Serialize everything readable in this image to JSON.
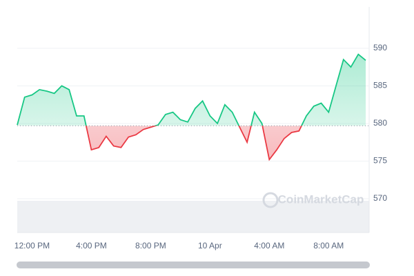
{
  "chart_data": {
    "type": "line",
    "categories": [
      null,
      null,
      "12:00 PM",
      null,
      null,
      null,
      null,
      null,
      null,
      null,
      "4:00 PM",
      null,
      null,
      null,
      null,
      null,
      null,
      null,
      "8:00 PM",
      null,
      null,
      null,
      null,
      null,
      null,
      null,
      "10 Apr",
      null,
      null,
      null,
      null,
      null,
      null,
      null,
      "4:00 AM",
      null,
      null,
      null,
      null,
      null,
      null,
      null,
      "8:00 AM",
      null,
      null,
      null,
      null,
      null
    ],
    "values": [
      579.8,
      583.5,
      583.8,
      584.5,
      584.3,
      584.0,
      585.0,
      584.5,
      581.0,
      581.0,
      576.5,
      576.8,
      578.3,
      577.0,
      576.8,
      578.2,
      578.5,
      579.2,
      579.5,
      579.8,
      581.2,
      581.5,
      580.5,
      580.2,
      582.0,
      583.0,
      581.0,
      580.0,
      582.5,
      581.5,
      579.5,
      577.5,
      581.5,
      580.0,
      575.2,
      576.5,
      578.0,
      578.8,
      579.0,
      581.0,
      582.3,
      582.7,
      581.5,
      585.0,
      588.5,
      587.5,
      589.2,
      588.4
    ],
    "baseline": 579.7,
    "up_color": "#16c784",
    "down_color": "#ea3943",
    "ylim": [
      565.5,
      595.5
    ],
    "yticks": [
      570,
      575,
      580,
      585,
      590
    ],
    "grid": true,
    "watermark": "CoinMarketCap"
  }
}
